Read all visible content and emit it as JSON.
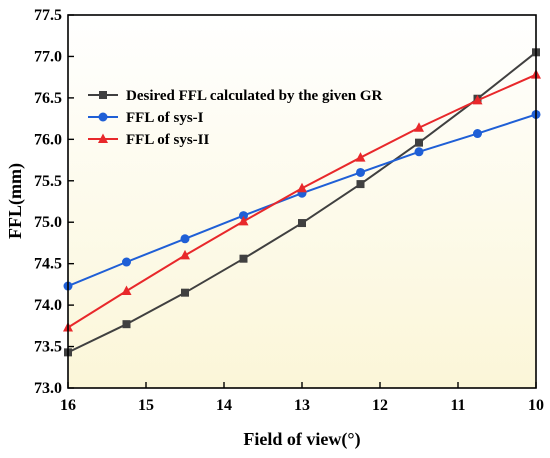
{
  "chart_data": {
    "type": "line",
    "xlabel": "Field of view(°)",
    "ylabel": "FFL(mm)",
    "xlim": [
      16,
      10
    ],
    "ylim": [
      73.0,
      77.5
    ],
    "x_reversed": true,
    "x": [
      16,
      15.25,
      14.5,
      13.75,
      13,
      12.25,
      11.5,
      10.75,
      10
    ],
    "x_ticks": [
      16,
      15,
      14,
      13,
      12,
      11,
      10
    ],
    "y_ticks": [
      "73.0",
      "73.5",
      "74.0",
      "74.5",
      "75.0",
      "75.5",
      "76.0",
      "76.5",
      "77.0",
      "77.5"
    ],
    "grid": false,
    "legend_position": "top-left",
    "background_gradient": [
      "#fbf6d8",
      "#ffffff"
    ],
    "series": [
      {
        "name": "Desired FFL calculated by the given GR",
        "color": "#404040",
        "marker": "square",
        "values": [
          73.43,
          73.77,
          74.15,
          74.56,
          74.99,
          75.46,
          75.96,
          76.49,
          77.05
        ]
      },
      {
        "name": "FFL of sys-I",
        "color": "#1f5fd6",
        "marker": "circle",
        "values": [
          74.23,
          74.52,
          74.8,
          75.08,
          75.35,
          75.6,
          75.85,
          76.07,
          76.3
        ]
      },
      {
        "name": "FFL of sys-II",
        "color": "#e8282b",
        "marker": "triangle",
        "values": [
          73.73,
          74.17,
          74.6,
          75.01,
          75.41,
          75.78,
          76.14,
          76.47,
          76.78
        ]
      }
    ]
  }
}
